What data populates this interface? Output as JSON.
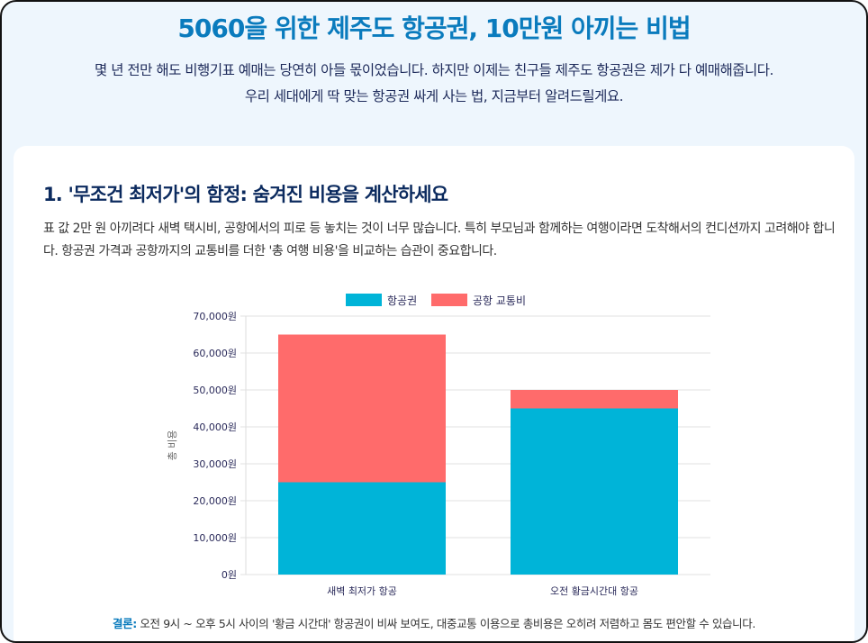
{
  "header": {
    "title": "5060을 위한 제주도 항공권, 10만원 아끼는 비법",
    "intro": "몇 년 전만 해도 비행기표 예매는 당연히 아들 몫이었습니다. 하지만 이제는 친구들 제주도 항공권은 제가 다 예매해줍니다. 우리 세대에게 딱 맞는 항공권 싸게 사는 법, 지금부터 알려드릴게요."
  },
  "section": {
    "heading": "1. '무조건 최저가'의 함정: 숨겨진 비용을 계산하세요",
    "body": "표 값 2만 원 아끼려다 새벽 택시비, 공항에서의 피로 등 놓치는 것이 너무 많습니다. 특히 부모님과 함께하는 여행이라면 도착해서의 컨디션까지 고려해야 합니다. 항공권 가격과 공항까지의 교통비를 더한 '총 여행 비용'을 비교하는 습관이 중요합니다.",
    "conclusion_label": "결론:",
    "conclusion_text": " 오전 9시 ~ 오후 5시 사이의 '황금 시간대' 항공권이 비싸 보여도, 대중교통 이용으로 총비용은 오히려 저렴하고 몸도 편안할 수 있습니다."
  },
  "chart_data": {
    "type": "bar",
    "stacked": true,
    "categories": [
      "새벽 최저가 항공",
      "오전 황금시간대 항공"
    ],
    "series": [
      {
        "name": "항공권",
        "values": [
          25000,
          45000
        ],
        "color": "#00b4d8"
      },
      {
        "name": "공항 교통비",
        "values": [
          40000,
          5000
        ],
        "color": "#ff6b6b"
      }
    ],
    "ylabel": "총 비용",
    "ylim": [
      0,
      70000
    ],
    "yticks": [
      "0원",
      "10,000원",
      "20,000원",
      "30,000원",
      "40,000원",
      "50,000원",
      "60,000원",
      "70,000원"
    ],
    "grid": true,
    "legend": "top"
  }
}
